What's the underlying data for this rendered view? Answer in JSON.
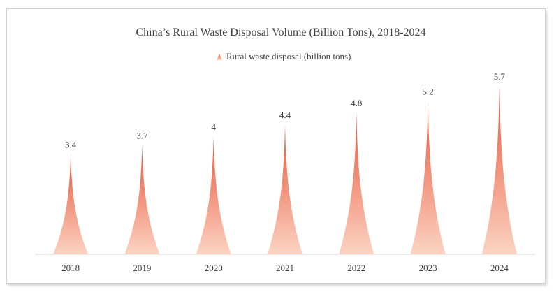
{
  "chart_data": {
    "type": "bar",
    "bar_shape": "cone",
    "title": "China’s Rural Waste Disposal Volume (Billion Tons), 2018-2024",
    "categories": [
      "2018",
      "2019",
      "2020",
      "2021",
      "2022",
      "2023",
      "2024"
    ],
    "series": [
      {
        "name": "Rural waste disposal (billion tons)",
        "values": [
          3.4,
          3.7,
          4,
          4.4,
          4.8,
          5.2,
          5.7
        ]
      }
    ],
    "data_labels": [
      "3.4",
      "3.7",
      "4",
      "4.4",
      "4.8",
      "5.2",
      "5.7"
    ],
    "xlabel": "",
    "ylabel": "",
    "ylim": [
      0,
      6.2
    ],
    "grid": false,
    "legend_position": "top-center",
    "colors": {
      "peak": "#e8553a",
      "base": "#fbd3c2",
      "axis": "#d9d9d9",
      "text": "#404040"
    }
  }
}
